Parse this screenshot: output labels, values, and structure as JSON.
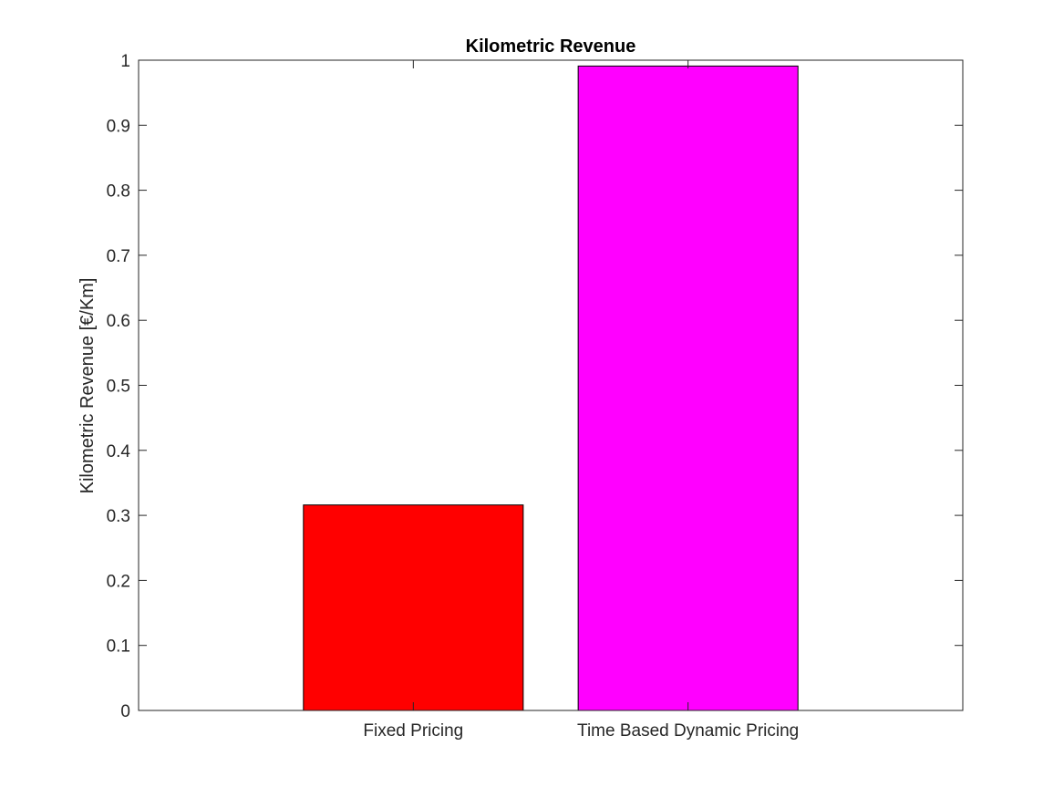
{
  "chart_data": {
    "type": "bar",
    "title": "Kilometric Revenue",
    "xlabel": "",
    "ylabel": "Kilometric Revenue [€/Km]",
    "categories": [
      "Fixed Pricing",
      "Time Based Dynamic Pricing"
    ],
    "values": [
      0.316,
      0.991
    ],
    "colors": [
      "#ff0000",
      "#ff00ff"
    ],
    "ylim": [
      0,
      1
    ],
    "yticks": [
      "0",
      "0.1",
      "0.2",
      "0.3",
      "0.4",
      "0.5",
      "0.6",
      "0.7",
      "0.8",
      "0.9",
      "1"
    ],
    "grid": false,
    "legend": "none"
  }
}
